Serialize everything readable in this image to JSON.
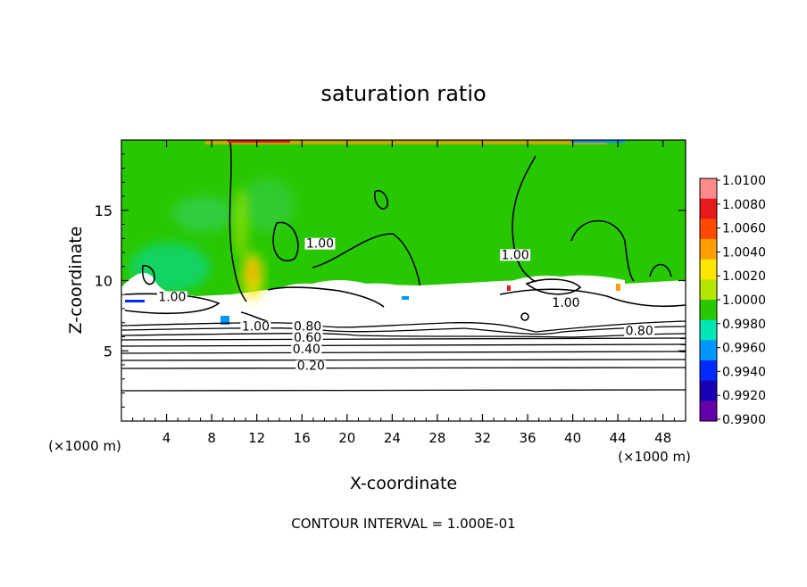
{
  "chart_data": {
    "type": "heatmap",
    "title": "saturation ratio",
    "xlabel": "X-coordinate",
    "ylabel": "Z-coordinate",
    "x_unit": "(×1000 m)",
    "y_unit": "(×1000 m)",
    "xlim": [
      0,
      50
    ],
    "ylim": [
      0,
      20
    ],
    "x_ticks": [
      4,
      8,
      12,
      16,
      20,
      24,
      28,
      32,
      36,
      40,
      44,
      48
    ],
    "y_ticks": [
      5,
      10,
      15
    ],
    "colorbar": {
      "levels": [
        1.01,
        1.008,
        1.006,
        1.004,
        1.002,
        1.0,
        0.998,
        0.996,
        0.994,
        0.992,
        0.99
      ],
      "labels": [
        "1.0100",
        "1.0080",
        "1.0060",
        "1.0040",
        "1.0020",
        "1.0000",
        "0.9980",
        "0.9960",
        "0.9940",
        "0.9920",
        "0.9900"
      ],
      "colors": [
        "#ff8a8a",
        "#e61a1a",
        "#ff4a00",
        "#ff9e00",
        "#ffe600",
        "#b4e600",
        "#28c800",
        "#00e6b4",
        "#0096ff",
        "#0028ff",
        "#1a00b4",
        "#6400aa"
      ]
    },
    "contour_labels": [
      {
        "text": "1.00",
        "x": 4.5,
        "z": 8.6
      },
      {
        "text": "1.00",
        "x": 11.9,
        "z": 6.5
      },
      {
        "text": "0.80",
        "x": 16.5,
        "z": 6.5
      },
      {
        "text": "0.60",
        "x": 16.5,
        "z": 5.7
      },
      {
        "text": "0.40",
        "x": 16.4,
        "z": 4.9
      },
      {
        "text": "0.20",
        "x": 16.8,
        "z": 3.7
      },
      {
        "text": "1.00",
        "x": 17.6,
        "z": 12.4
      },
      {
        "text": "1.00",
        "x": 34.9,
        "z": 11.6
      },
      {
        "text": "1.00",
        "x": 39.4,
        "z": 8.2
      },
      {
        "text": "0.80",
        "x": 45.9,
        "z": 6.2
      }
    ],
    "contour_interval_text": "CONTOUR INTERVAL = 1.000E-01"
  }
}
